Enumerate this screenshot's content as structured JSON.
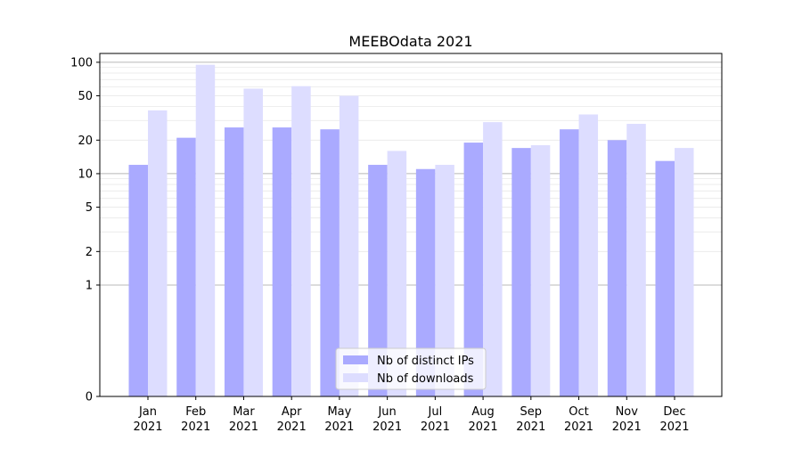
{
  "chart_data": {
    "type": "bar",
    "title": "MEEBOdata 2021",
    "xlabel": "",
    "ylabel": "",
    "y_scale": "symlog",
    "ylim": [
      0,
      120
    ],
    "y_ticks": [
      0,
      1,
      2,
      5,
      10,
      20,
      50,
      100
    ],
    "y_tick_labels": [
      "0",
      "1",
      "2",
      "5",
      "10",
      "20",
      "50",
      "100"
    ],
    "categories": [
      "Jan\n2021",
      "Feb\n2021",
      "Mar\n2021",
      "Apr\n2021",
      "May\n2021",
      "Jun\n2021",
      "Jul\n2021",
      "Aug\n2021",
      "Sep\n2021",
      "Oct\n2021",
      "Nov\n2021",
      "Dec\n2021"
    ],
    "series": [
      {
        "name": "Nb of distinct IPs",
        "color": "#aaaaff",
        "values": [
          12,
          21,
          26,
          26,
          25,
          12,
          11,
          19,
          17,
          25,
          20,
          13
        ]
      },
      {
        "name": "Nb of downloads",
        "color": "#ddddff",
        "values": [
          37,
          95,
          58,
          61,
          50,
          16,
          12,
          29,
          18,
          34,
          28,
          17
        ]
      }
    ],
    "grid": true,
    "legend_position": "bottom-center"
  }
}
